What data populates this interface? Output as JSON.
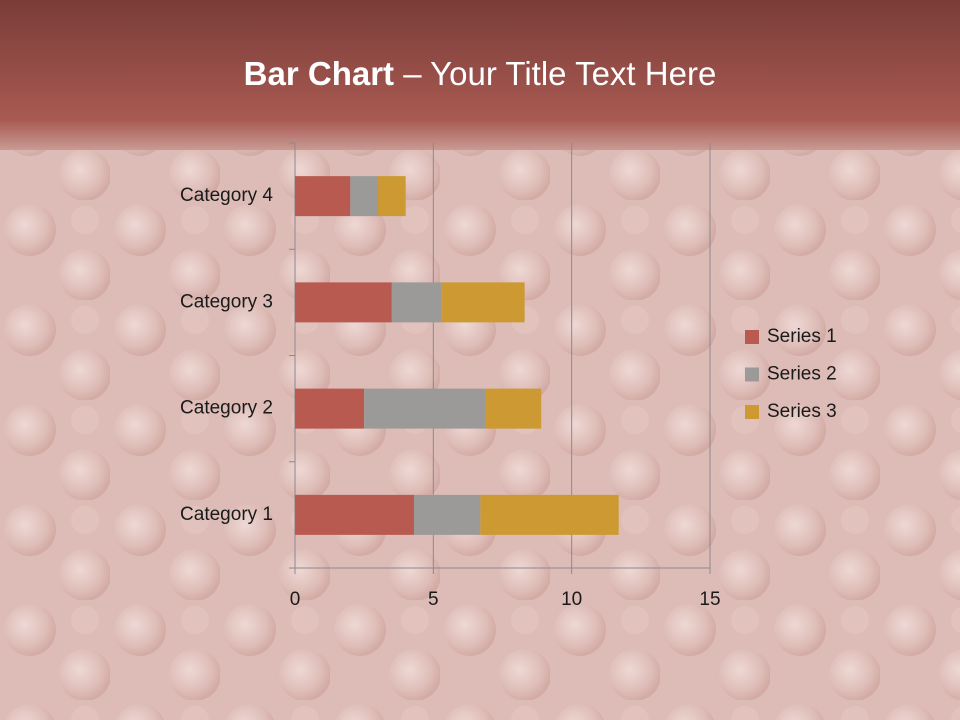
{
  "chart_data": {
    "type": "stacked_barh",
    "title": [
      "Bar Chart",
      "– Your Title Text Here"
    ],
    "categories": [
      "Category 1",
      "Category 2",
      "Category 3",
      "Category 4"
    ],
    "series": [
      {
        "name": "Series 1",
        "color": "#b85a50",
        "values": [
          4.3,
          2.5,
          3.5,
          2.0
        ]
      },
      {
        "name": "Series 2",
        "color": "#9c9a98",
        "values": [
          2.4,
          4.4,
          1.8,
          1.0
        ]
      },
      {
        "name": "Series 3",
        "color": "#cc9933",
        "values": [
          5.0,
          2.0,
          3.0,
          1.0
        ]
      }
    ],
    "xlim": [
      0,
      15
    ],
    "xticks": [
      0,
      5,
      10,
      15
    ],
    "grid": true,
    "legend": "right"
  }
}
